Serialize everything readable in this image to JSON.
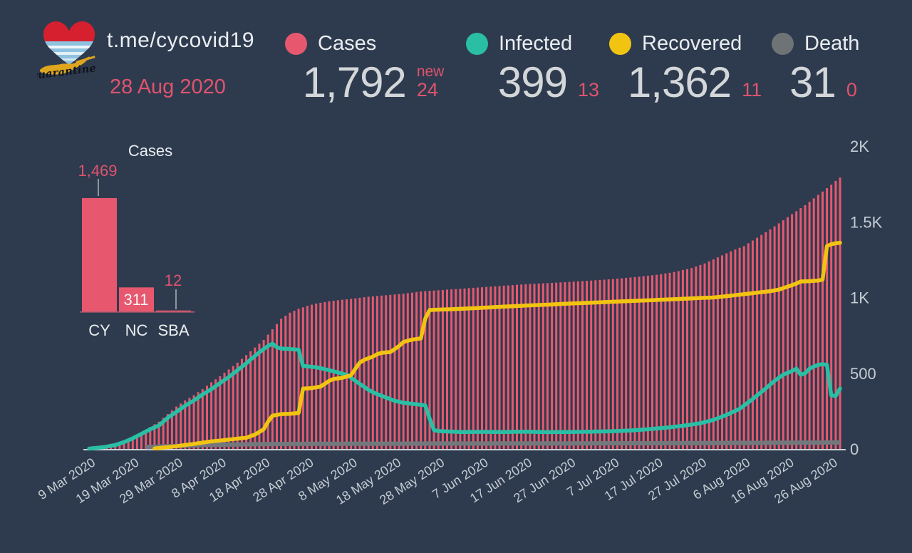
{
  "header": {
    "logo": {
      "icon": "quarantine-heart-cyprus-logo",
      "text": "Quarantine"
    },
    "channel": "t.me/cycovid19",
    "date": "28 Aug 2020",
    "stats": [
      {
        "id": "cases",
        "label": "Cases",
        "value": "1,792",
        "delta": "24",
        "delta_prefix": "new",
        "color": "#e7586f"
      },
      {
        "id": "infected",
        "label": "Infected",
        "value": "399",
        "delta": "13",
        "color": "#2abfa4"
      },
      {
        "id": "recovered",
        "label": "Recovered",
        "value": "1,362",
        "delta": "11",
        "color": "#f2c412"
      },
      {
        "id": "death",
        "label": "Death",
        "value": "31",
        "delta": "0",
        "color": "#6e7376"
      }
    ]
  },
  "colors": {
    "background": "#2e3b4e",
    "accent": "#e0536d",
    "bars": "#e7586f",
    "infected": "#2abfa4",
    "recovered": "#f2c412",
    "death_line": "#73787c",
    "text_primary": "#e9edf0",
    "text_number": "#d4d7d9",
    "axis_text": "#c5ccd3",
    "axis_line": "#ccd3d9",
    "leader_line": "#8f969c",
    "mini_baseline": "#b25a6e",
    "inside_bar_label": "#f4f5f6"
  },
  "chart_data": [
    {
      "type": "bar",
      "title": "Cases",
      "categories": [
        "CY",
        "NC",
        "SBA"
      ],
      "values": [
        1469,
        311,
        12
      ],
      "value_labels": [
        "1,469",
        "311",
        "12"
      ],
      "value_label_position": [
        "outside",
        "inside",
        "outside"
      ],
      "bar_color": "#e7586f",
      "xlabel": "",
      "ylabel": "",
      "grid": false
    },
    {
      "type": "bar+line",
      "title": "",
      "grid": false,
      "x_axis": {
        "start": "9 Mar 2020",
        "end": "28 Aug 2020",
        "total_days": 172,
        "tick_interval_days": 10,
        "tick_labels": [
          "9 Mar 2020",
          "19 Mar 2020",
          "29 Mar 2020",
          "8 Apr 2020",
          "18 Apr 2020",
          "28 Apr 2020",
          "8 May 2020",
          "18 May 2020",
          "28 May 2020",
          "7 Jun 2020",
          "17 Jun 2020",
          "27 Jun 2020",
          "7 Jul 2020",
          "17 Jul 2020",
          "27 Jul 2020",
          "6 Aug 2020",
          "16 Aug 2020",
          "26 Aug 2020"
        ]
      },
      "y_axis": {
        "side": "right",
        "range": [
          0,
          2000
        ],
        "ticks": [
          {
            "label": "0",
            "value": 0
          },
          {
            "label": "500",
            "value": 500
          },
          {
            "label": "1K",
            "value": 1000
          },
          {
            "label": "1.5K",
            "value": 1500
          },
          {
            "label": "2K",
            "value": 2000
          }
        ]
      },
      "keypoints_format": "[day_index_from_9_Mar_2020, value]; daily points linearly interpolated",
      "series": [
        {
          "name": "Cases",
          "type": "bar",
          "color": "#e7586f",
          "final_value": 1792,
          "start_day": 0,
          "keypoints": [
            [
              0,
              2
            ],
            [
              2,
              6
            ],
            [
              4,
              14
            ],
            [
              6,
              26
            ],
            [
              8,
              46
            ],
            [
              10,
              75
            ],
            [
              12,
              110
            ],
            [
              14,
              146
            ],
            [
              16,
              180
            ],
            [
              18,
              230
            ],
            [
              20,
              280
            ],
            [
              22,
              320
            ],
            [
              24,
              355
            ],
            [
              26,
              395
            ],
            [
              28,
              440
            ],
            [
              30,
              480
            ],
            [
              32,
              525
            ],
            [
              34,
              570
            ],
            [
              36,
              620
            ],
            [
              38,
              670
            ],
            [
              40,
              720
            ],
            [
              42,
              790
            ],
            [
              44,
              860
            ],
            [
              46,
              900
            ],
            [
              48,
              925
            ],
            [
              50,
              945
            ],
            [
              52,
              960
            ],
            [
              55,
              975
            ],
            [
              58,
              985
            ],
            [
              61,
              995
            ],
            [
              64,
              1005
            ],
            [
              68,
              1015
            ],
            [
              72,
              1025
            ],
            [
              76,
              1040
            ],
            [
              80,
              1048
            ],
            [
              85,
              1058
            ],
            [
              90,
              1068
            ],
            [
              95,
              1078
            ],
            [
              100,
              1088
            ],
            [
              105,
              1095
            ],
            [
              110,
              1103
            ],
            [
              115,
              1112
            ],
            [
              120,
              1122
            ],
            [
              125,
              1135
            ],
            [
              130,
              1150
            ],
            [
              134,
              1168
            ],
            [
              138,
              1195
            ],
            [
              141,
              1225
            ],
            [
              144,
              1265
            ],
            [
              147,
              1305
            ],
            [
              150,
              1340
            ],
            [
              153,
              1395
            ],
            [
              156,
              1450
            ],
            [
              159,
              1510
            ],
            [
              162,
              1570
            ],
            [
              164,
              1610
            ],
            [
              166,
              1655
            ],
            [
              168,
              1700
            ],
            [
              170,
              1745
            ],
            [
              171,
              1770
            ],
            [
              172,
              1792
            ]
          ]
        },
        {
          "name": "Infected",
          "type": "line",
          "color": "#2abfa4",
          "final_value": 399,
          "start_day": 0,
          "keypoints": [
            [
              0,
              2
            ],
            [
              2,
              8
            ],
            [
              4,
              15
            ],
            [
              6,
              26
            ],
            [
              8,
              45
            ],
            [
              10,
              70
            ],
            [
              12,
              100
            ],
            [
              14,
              130
            ],
            [
              16,
              155
            ],
            [
              18,
              205
            ],
            [
              20,
              245
            ],
            [
              22,
              285
            ],
            [
              24,
              320
            ],
            [
              26,
              360
            ],
            [
              28,
              395
            ],
            [
              30,
              435
            ],
            [
              32,
              475
            ],
            [
              34,
              520
            ],
            [
              36,
              565
            ],
            [
              38,
              615
            ],
            [
              40,
              660
            ],
            [
              41,
              680
            ],
            [
              42,
              695
            ],
            [
              43,
              672
            ],
            [
              44,
              663
            ],
            [
              46,
              660
            ],
            [
              48,
              655
            ],
            [
              49,
              548
            ],
            [
              52,
              540
            ],
            [
              55,
              520
            ],
            [
              57,
              505
            ],
            [
              59,
              490
            ],
            [
              60,
              470
            ],
            [
              61,
              450
            ],
            [
              62,
              430
            ],
            [
              63,
              410
            ],
            [
              64,
              390
            ],
            [
              65,
              375
            ],
            [
              66,
              362
            ],
            [
              68,
              340
            ],
            [
              70,
              318
            ],
            [
              72,
              305
            ],
            [
              74,
              298
            ],
            [
              76,
              292
            ],
            [
              77,
              288
            ],
            [
              78,
              200
            ],
            [
              79,
              125
            ],
            [
              80,
              118
            ],
            [
              85,
              112
            ],
            [
              90,
              113
            ],
            [
              95,
              112
            ],
            [
              100,
              114
            ],
            [
              105,
              111
            ],
            [
              110,
              112
            ],
            [
              115,
              114
            ],
            [
              120,
              117
            ],
            [
              124,
              122
            ],
            [
              128,
              130
            ],
            [
              132,
              140
            ],
            [
              136,
              153
            ],
            [
              140,
              170
            ],
            [
              143,
              192
            ],
            [
              146,
              225
            ],
            [
              149,
              265
            ],
            [
              152,
              330
            ],
            [
              155,
              400
            ],
            [
              157,
              450
            ],
            [
              159,
              490
            ],
            [
              161,
              515
            ],
            [
              162,
              530
            ],
            [
              163,
              490
            ],
            [
              164,
              500
            ],
            [
              165,
              530
            ],
            [
              166,
              545
            ],
            [
              167,
              555
            ],
            [
              168,
              560
            ],
            [
              169,
              555
            ],
            [
              170,
              355
            ],
            [
              171,
              350
            ],
            [
              172,
              399
            ]
          ]
        },
        {
          "name": "Recovered",
          "type": "line",
          "color": "#f2c412",
          "final_value": 1362,
          "start_day": 15,
          "keypoints": [
            [
              0,
              0
            ],
            [
              14,
              0
            ],
            [
              16,
              6
            ],
            [
              18,
              12
            ],
            [
              20,
              18
            ],
            [
              22,
              26
            ],
            [
              24,
              33
            ],
            [
              26,
              42
            ],
            [
              28,
              50
            ],
            [
              30,
              55
            ],
            [
              32,
              62
            ],
            [
              34,
              68
            ],
            [
              36,
              74
            ],
            [
              38,
              95
            ],
            [
              40,
              130
            ],
            [
              41,
              180
            ],
            [
              42,
              220
            ],
            [
              44,
              230
            ],
            [
              46,
              232
            ],
            [
              48,
              238
            ],
            [
              49,
              398
            ],
            [
              51,
              402
            ],
            [
              53,
              412
            ],
            [
              54,
              430
            ],
            [
              55,
              450
            ],
            [
              56,
              462
            ],
            [
              58,
              470
            ],
            [
              60,
              487
            ],
            [
              61,
              530
            ],
            [
              62,
              570
            ],
            [
              63,
              588
            ],
            [
              65,
              610
            ],
            [
              66,
              626
            ],
            [
              67,
              635
            ],
            [
              69,
              640
            ],
            [
              71,
              680
            ],
            [
              72,
              706
            ],
            [
              73,
              715
            ],
            [
              74,
              722
            ],
            [
              76,
              730
            ],
            [
              77,
              860
            ],
            [
              78,
              917
            ],
            [
              80,
              920
            ],
            [
              85,
              925
            ],
            [
              90,
              932
            ],
            [
              95,
              940
            ],
            [
              100,
              947
            ],
            [
              105,
              953
            ],
            [
              110,
              960
            ],
            [
              115,
              966
            ],
            [
              120,
              972
            ],
            [
              125,
              978
            ],
            [
              130,
              984
            ],
            [
              135,
              990
            ],
            [
              139,
              996
            ],
            [
              143,
              1000
            ],
            [
              147,
              1012
            ],
            [
              150,
              1022
            ],
            [
              153,
              1032
            ],
            [
              156,
              1042
            ],
            [
              158,
              1052
            ],
            [
              160,
              1072
            ],
            [
              162,
              1092
            ],
            [
              163,
              1106
            ],
            [
              165,
              1108
            ],
            [
              167,
              1112
            ],
            [
              168,
              1118
            ],
            [
              169,
              1340
            ],
            [
              170,
              1352
            ],
            [
              171,
              1358
            ],
            [
              172,
              1362
            ]
          ]
        },
        {
          "name": "Death",
          "type": "line",
          "color": "#73787c",
          "final_value": 31,
          "start_day": 13,
          "keypoints": [
            [
              0,
              0
            ],
            [
              12,
              0
            ],
            [
              13,
              1
            ],
            [
              15,
              3
            ],
            [
              17,
              5
            ],
            [
              20,
              8
            ],
            [
              23,
              11
            ],
            [
              26,
              14
            ],
            [
              30,
              16
            ],
            [
              34,
              18
            ],
            [
              38,
              20
            ],
            [
              43,
              21
            ],
            [
              50,
              22
            ],
            [
              60,
              23
            ],
            [
              70,
              23
            ],
            [
              80,
              24
            ],
            [
              90,
              24
            ],
            [
              100,
              25
            ],
            [
              110,
              25
            ],
            [
              120,
              26
            ],
            [
              130,
              26
            ],
            [
              140,
              27
            ],
            [
              147,
              28
            ],
            [
              152,
              28
            ],
            [
              157,
              29
            ],
            [
              162,
              30
            ],
            [
              166,
              30
            ],
            [
              169,
              31
            ],
            [
              172,
              31
            ]
          ]
        }
      ]
    }
  ]
}
